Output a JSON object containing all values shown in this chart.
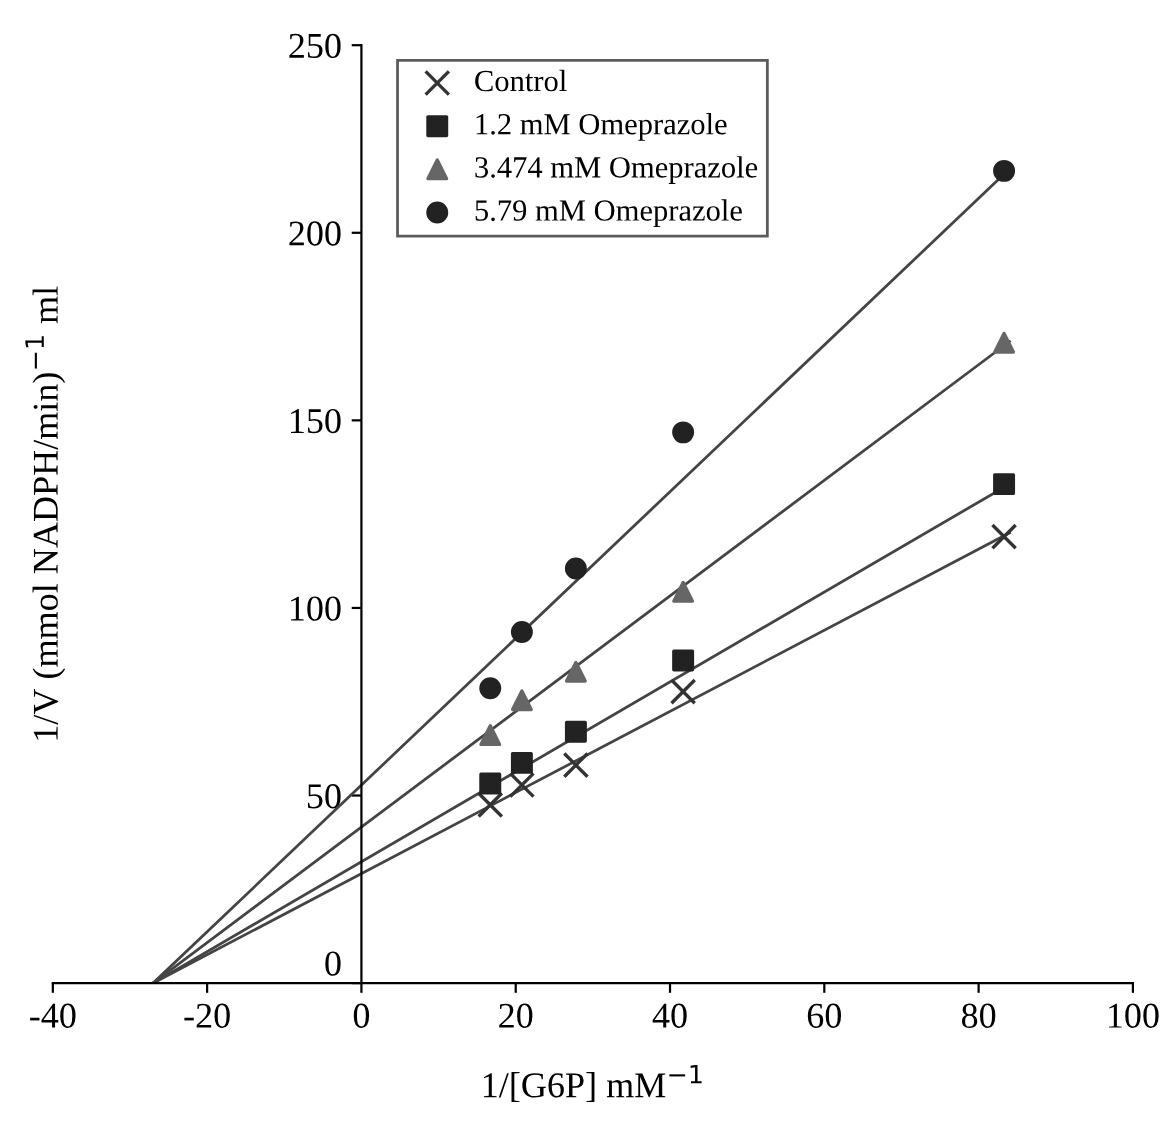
{
  "chart_data": {
    "type": "scatter",
    "xlabel": "1/[G6P] mM$^{−1}$",
    "ylabel": "1/V (mmol NADPH/min)$^{−1}$ ml",
    "xlim": [
      -40,
      100
    ],
    "ylim": [
      0,
      250
    ],
    "xticks": [
      -40,
      -20,
      0,
      20,
      40,
      60,
      80,
      100
    ],
    "yticks": [
      0,
      50,
      100,
      150,
      200,
      250
    ],
    "grid": false,
    "legend": "top left",
    "series": [
      {
        "name": "Control",
        "color": "#333333",
        "marker": "cross",
        "x": [
          16.7,
          20.8,
          27.8,
          41.7,
          83.3
        ],
        "values": [
          47.5,
          52.8,
          58.1,
          77.7,
          119
        ]
      },
      {
        "name": "1.2 mM Omeprazole",
        "color": "#222222",
        "marker": "square",
        "x": [
          16.7,
          20.8,
          27.8,
          41.7,
          83.3
        ],
        "values": [
          53.2,
          58.7,
          67,
          86,
          133
        ]
      },
      {
        "name": "3.474 mM Omeprazole",
        "color": "#666666",
        "marker": "triangle",
        "x": [
          16.7,
          20.8,
          27.8,
          41.7,
          83.3
        ],
        "values": [
          66.1,
          75.4,
          83,
          104.3,
          170.7
        ]
      },
      {
        "name": "5.79 mM Omeprazole",
        "color": "#222222",
        "marker": "circle",
        "x": [
          16.7,
          20.8,
          27.8,
          41.7,
          83.3
        ],
        "values": [
          78.6,
          93.6,
          110.5,
          146.8,
          216.5
        ]
      },
      {
        "type": "line",
        "color": "#444444",
        "marker": "none",
        "x": [
          -27,
          84
        ],
        "values": [
          0,
          120
        ]
      },
      {
        "type": "line",
        "color": "#444444",
        "marker": "none",
        "x": [
          -27,
          84
        ],
        "values": [
          0,
          133
        ]
      },
      {
        "type": "line",
        "color": "#444444",
        "marker": "none",
        "x": [
          -27,
          84
        ],
        "values": [
          0,
          171
        ]
      },
      {
        "type": "line",
        "color": "#444444",
        "marker": "none",
        "x": [
          -27,
          84
        ],
        "values": [
          0,
          217
        ]
      }
    ]
  }
}
